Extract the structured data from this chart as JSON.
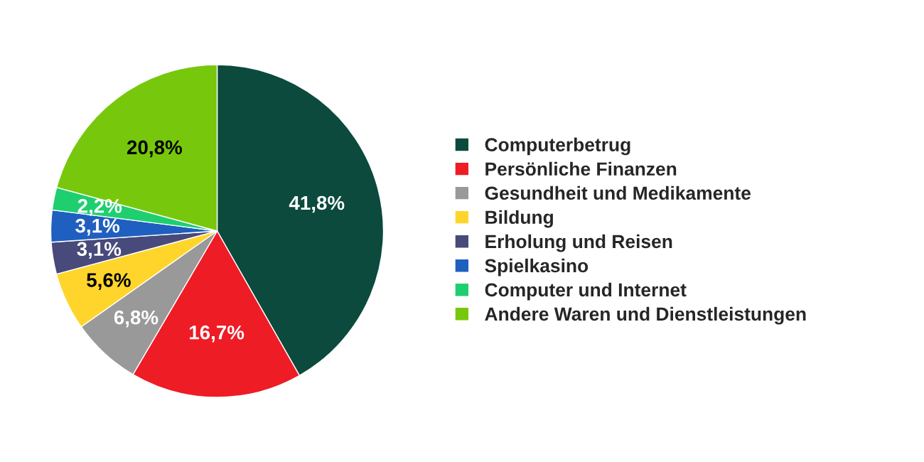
{
  "chart_data": {
    "type": "pie",
    "categories": [
      "Computerbetrug",
      "Persönliche Finanzen",
      "Gesundheit und Medikamente",
      "Bildung",
      "Erholung und Reisen",
      "Spielkasino",
      "Computer und Internet",
      "Andere Waren und Dienstleistungen"
    ],
    "values": [
      41.8,
      16.7,
      6.8,
      5.6,
      3.1,
      3.1,
      2.2,
      20.8
    ],
    "value_labels": [
      "41,8%",
      "16,7%",
      "6,8%",
      "5,6%",
      "3,1%",
      "3,1%",
      "2,2%",
      "20,8%"
    ],
    "colors": [
      "#0b4a3c",
      "#ee1c25",
      "#999999",
      "#ffd52b",
      "#474a7a",
      "#1f5fbf",
      "#1fcf6f",
      "#77c80d"
    ],
    "legend": "right"
  }
}
